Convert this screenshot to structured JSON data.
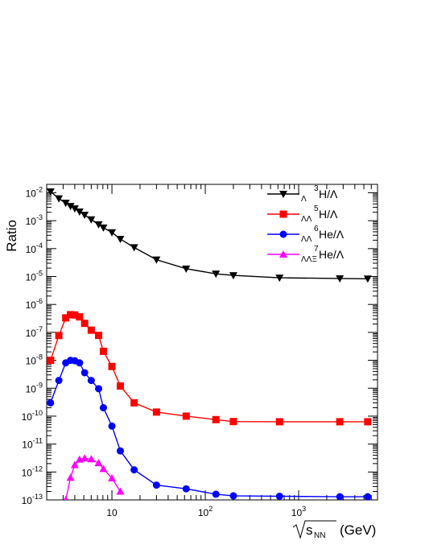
{
  "chart_data": {
    "type": "line",
    "title": "",
    "ylabel": "Ratio",
    "xlabel": {
      "sqrt": "s",
      "sub": "NN",
      "unit": "(GeV)"
    },
    "x_scale": "log",
    "y_scale": "log",
    "xlim": [
      2,
      7000
    ],
    "ylim": [
      1e-13,
      0.02
    ],
    "x_ticks": [
      {
        "value": 10,
        "base": "10",
        "exp": ""
      },
      {
        "value": 100,
        "base": "10",
        "exp": "2"
      },
      {
        "value": 1000,
        "base": "10",
        "exp": "3"
      }
    ],
    "y_ticks": [
      {
        "value": 0.01,
        "base": "10",
        "exp": "-2"
      },
      {
        "value": 0.001,
        "base": "10",
        "exp": "-3"
      },
      {
        "value": 0.0001,
        "base": "10",
        "exp": "-4"
      },
      {
        "value": 1e-05,
        "base": "10",
        "exp": "-5"
      },
      {
        "value": 1e-06,
        "base": "10",
        "exp": "-6"
      },
      {
        "value": 1e-07,
        "base": "10",
        "exp": "-7"
      },
      {
        "value": 1e-08,
        "base": "10",
        "exp": "-8"
      },
      {
        "value": 1e-09,
        "base": "10",
        "exp": "-9"
      },
      {
        "value": 1e-10,
        "base": "10",
        "exp": "-10"
      },
      {
        "value": 1e-11,
        "base": "10",
        "exp": "-11"
      },
      {
        "value": 1e-12,
        "base": "10",
        "exp": "-12"
      },
      {
        "value": 1e-13,
        "base": "10",
        "exp": "-13"
      }
    ],
    "grid": false,
    "legend_position": "top-right",
    "series": [
      {
        "label_pre_sup": "3",
        "label_pre_sub": "Λ",
        "label_main": "H/Λ",
        "color": "#000000",
        "marker": "triangle-down",
        "x": [
          2.2,
          2.7,
          3.2,
          3.6,
          4.0,
          4.5,
          5.1,
          6.0,
          7.2,
          8.1,
          10.0,
          12.3,
          17.3,
          30,
          62.4,
          130,
          200,
          624,
          2760,
          5500
        ],
        "y": [
          0.011,
          0.0062,
          0.0043,
          0.0033,
          0.0027,
          0.0021,
          0.0016,
          0.0011,
          0.00073,
          0.00056,
          0.00038,
          0.00022,
          0.00011,
          4e-05,
          1.9e-05,
          1.25e-05,
          1.1e-05,
          9e-06,
          8.5e-06,
          8.3e-06
        ]
      },
      {
        "label_pre_sup": "5",
        "label_pre_sub": "ΛΛ",
        "label_main": "H/Λ",
        "color": "#ff0000",
        "marker": "square",
        "x": [
          2.2,
          2.7,
          3.2,
          3.6,
          4.0,
          4.5,
          5.1,
          6.0,
          7.2,
          8.1,
          10.0,
          12.3,
          17.3,
          30,
          62.4,
          130,
          200,
          624,
          2760,
          5500
        ],
        "y": [
          1e-08,
          7.7e-08,
          3.3e-07,
          4.3e-07,
          4.2e-07,
          3.6e-07,
          2.1e-07,
          1.2e-07,
          7.8e-08,
          2.1e-08,
          6e-09,
          1.2e-09,
          3e-10,
          1.4e-10,
          1e-10,
          7.5e-11,
          6.4e-11,
          6.3e-11,
          6.3e-11,
          6.3e-11
        ],
        "x_note": "",
        "y_note": ""
      },
      {
        "label_pre_sup": "6",
        "label_pre_sub": "ΛΛ",
        "label_main": "He/Λ",
        "color": "#0000ff",
        "marker": "circle",
        "x": [
          2.2,
          2.7,
          3.2,
          3.6,
          4.0,
          4.5,
          5.1,
          6.0,
          7.2,
          8.1,
          10.0,
          12.3,
          17.3,
          30,
          62.4,
          130,
          200,
          624,
          2760,
          5500
        ],
        "y": [
          3e-10,
          1.9e-09,
          8.1e-09,
          1e-08,
          9.6e-09,
          8.1e-09,
          3.6e-09,
          1.9e-09,
          9.6e-10,
          2e-10,
          4.4e-11,
          5.7e-12,
          1.2e-12,
          3.4e-13,
          2.5e-13,
          1.6e-13,
          1.4e-13,
          1.35e-13,
          1.3e-13,
          1.3e-13
        ]
      },
      {
        "label_pre_sup": "7",
        "label_pre_sub": "ΛΛΞ",
        "label_main": "He/Λ",
        "color": "#ff00ff",
        "marker": "triangle-up",
        "x": [
          3.2,
          3.6,
          4.0,
          4.5,
          5.1,
          6.0,
          7.2,
          8.1,
          10.0,
          12.3
        ],
        "y": [
          1e-13,
          6.3e-13,
          1.8e-12,
          2.8e-12,
          3.1e-12,
          2.9e-12,
          2.1e-12,
          1.3e-12,
          6e-13,
          2e-13
        ]
      }
    ]
  }
}
